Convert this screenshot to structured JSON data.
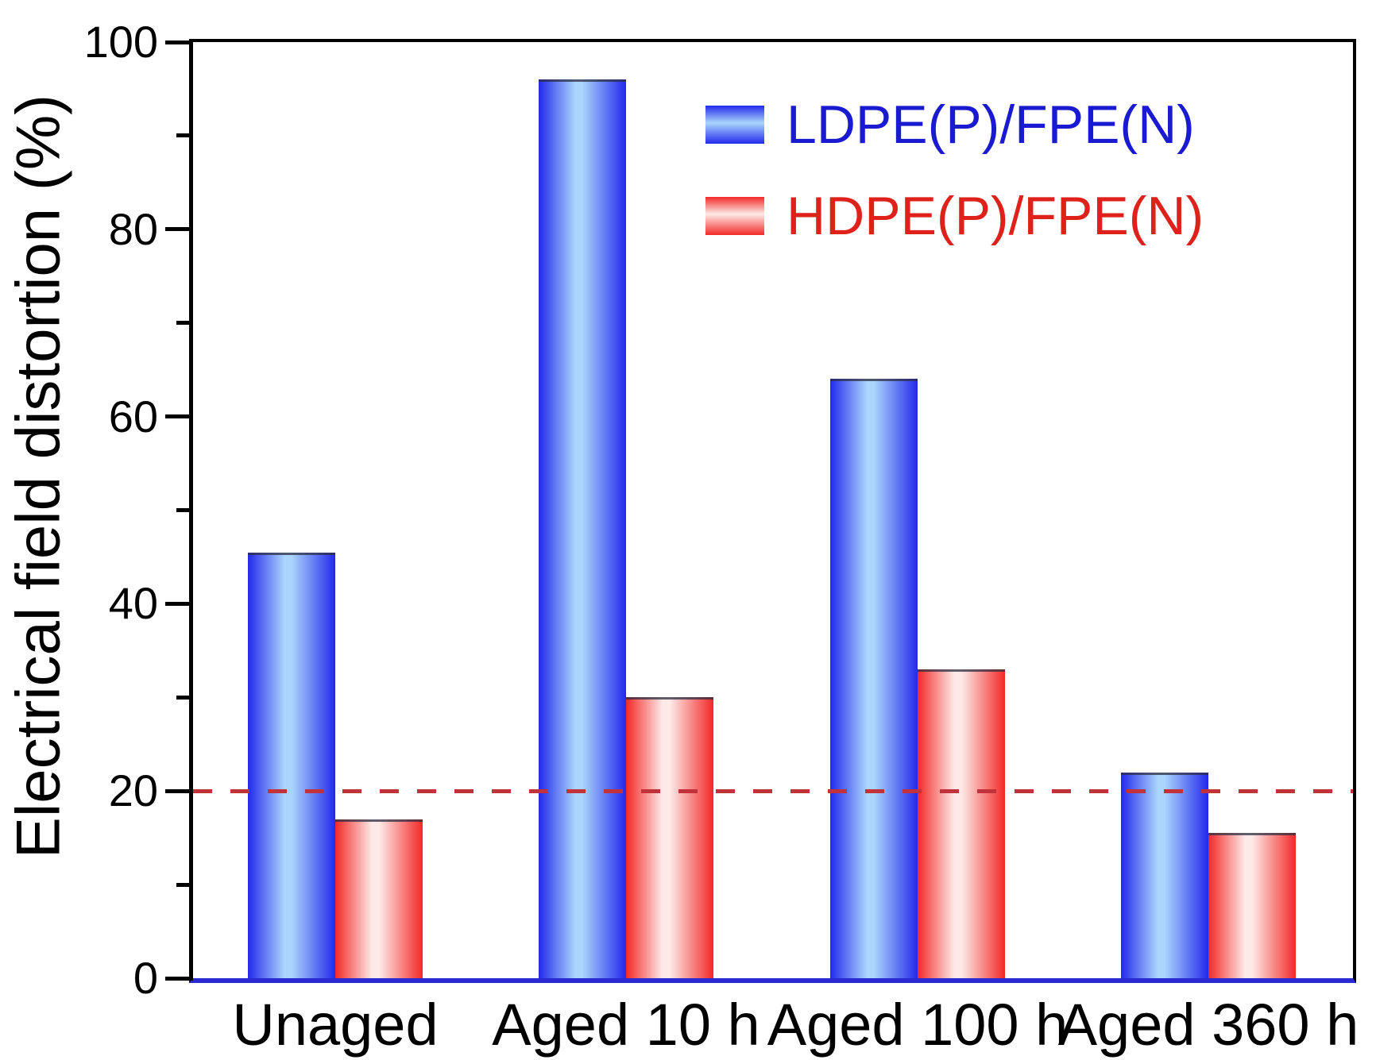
{
  "chart_data": {
    "type": "bar",
    "title": "",
    "categories": [
      "Unaged",
      "Aged 10 h",
      "Aged 100 h",
      "Aged 360 h"
    ],
    "series": [
      {
        "name": "LDPE(P)/FPE(N)",
        "values": [
          45.5,
          96,
          64,
          22
        ],
        "edge_color": "#2329ec",
        "center_color": "#aad5fc",
        "label_color": "#1a1ad0"
      },
      {
        "name": "HDPE(P)/FPE(N)",
        "values": [
          17,
          30,
          33,
          15.5
        ],
        "edge_color": "#f32927",
        "center_color": "#fdeae8",
        "label_color": "#de211a"
      }
    ],
    "xlabel": "",
    "ylabel": "Electrical field distortion (%)",
    "ylim": [
      0,
      100
    ],
    "yticks": [
      0,
      20,
      40,
      60,
      80,
      100
    ],
    "ytick_labels": [
      "0",
      "20",
      "40",
      "60",
      "80",
      "100"
    ],
    "minor_yticks": [
      10,
      30,
      50,
      70,
      90
    ],
    "grid": false,
    "legend_position": "upper-right-inside",
    "reference_line": {
      "value": 20,
      "style": "dashed",
      "color": "#c1323a"
    },
    "axis_colors": {
      "left": "#000000",
      "top": "#000000",
      "right": "#000000",
      "bottom": "#2a2ad2"
    }
  }
}
